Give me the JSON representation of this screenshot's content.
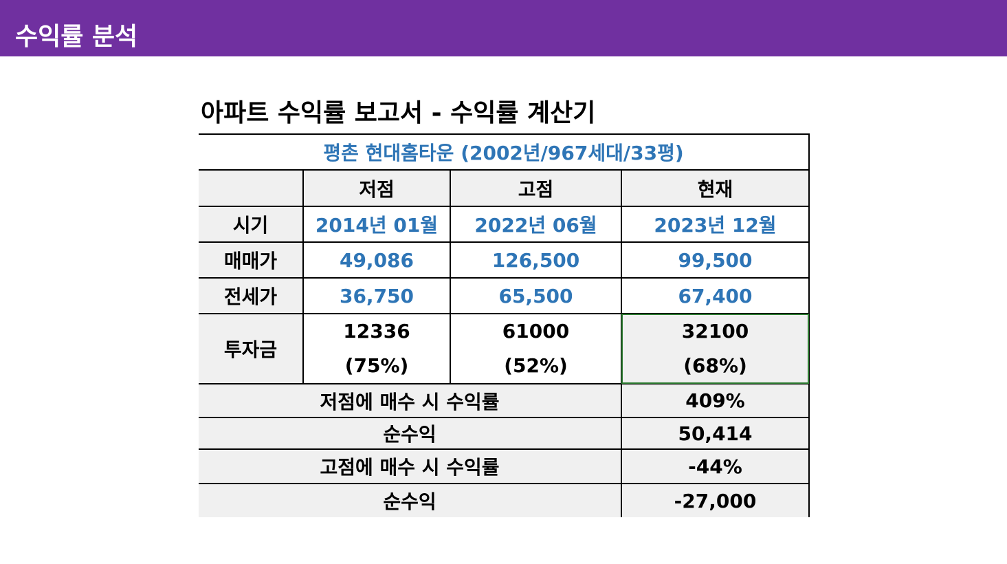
{
  "header": {
    "title": "수익률 분석"
  },
  "report": {
    "title": "아파트 수익률 보고서 - 수익률 계산기",
    "subtitle": "평촌 현대홈타운 (2002년/967세대/33평)"
  },
  "table": {
    "columns": [
      "저점",
      "고점",
      "현재"
    ],
    "rows": {
      "period": {
        "label": "시기",
        "values": [
          "2014년 01월",
          "2022년 06월",
          "2023년 12월"
        ]
      },
      "sale_price": {
        "label": "매매가",
        "values": [
          "49,086",
          "126,500",
          "99,500"
        ]
      },
      "jeonse_price": {
        "label": "전세가",
        "values": [
          "36,750",
          "65,500",
          "67,400"
        ]
      },
      "investment": {
        "label": "투자금",
        "values": [
          "12336",
          "61000",
          "32100"
        ],
        "ratios": [
          "(75%)",
          "(52%)",
          "(68%)"
        ]
      }
    },
    "summary": [
      {
        "label": "저점에 매수 시 수익률",
        "value": "409%"
      },
      {
        "label": "순수익",
        "value": "50,414"
      },
      {
        "label": "고점에 매수 시 수익률",
        "value": "-44%"
      },
      {
        "label": "순수익",
        "value": "-27,000"
      }
    ]
  },
  "colors": {
    "header_bg": "#7030a0",
    "blue_text": "#2e75b6",
    "cell_grey": "#f0f0f0",
    "selection": "#2e7d32"
  }
}
